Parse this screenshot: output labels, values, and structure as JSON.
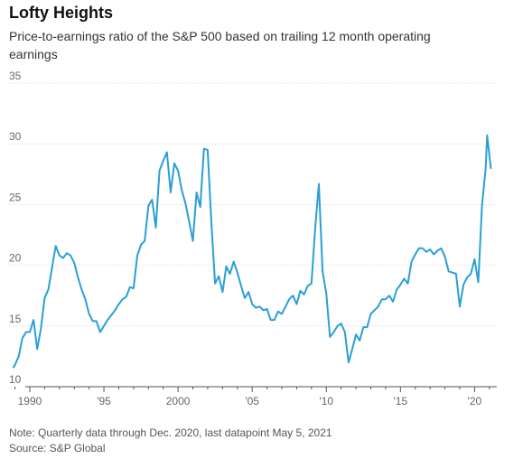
{
  "chart_data": {
    "type": "line",
    "title": "Lofty Heights",
    "subtitle": "Price-to-earnings ratio of the S&P 500 based on trailing 12 month operating earnings",
    "ylim": [
      10,
      35
    ],
    "xlim": [
      1988.6,
      2021.5
    ],
    "y_ticks": [
      10,
      15,
      20,
      25,
      30,
      35
    ],
    "x_ticks": [
      {
        "value": 1990,
        "label": "1990"
      },
      {
        "value": 1995,
        "label": "'95"
      },
      {
        "value": 2000,
        "label": "2000"
      },
      {
        "value": 2005,
        "label": "'05"
      },
      {
        "value": 2010,
        "label": "'10"
      },
      {
        "value": 2015,
        "label": "'15"
      },
      {
        "value": 2020,
        "label": "'20"
      }
    ],
    "grid": true,
    "line_color": "#2a9fd6",
    "series": [
      {
        "name": "",
        "x": [
          1988.9,
          1989.0,
          1989.25,
          1989.5,
          1989.75,
          1990.0,
          1990.25,
          1990.5,
          1990.75,
          1991.0,
          1991.25,
          1991.5,
          1991.75,
          1992.0,
          1992.25,
          1992.5,
          1992.75,
          1993.0,
          1993.25,
          1993.5,
          1993.75,
          1994.0,
          1994.25,
          1994.5,
          1994.75,
          1995.0,
          1995.25,
          1995.5,
          1995.75,
          1996.0,
          1996.25,
          1996.5,
          1996.75,
          1997.0,
          1997.25,
          1997.5,
          1997.75,
          1998.0,
          1998.25,
          1998.5,
          1998.75,
          1999.0,
          1999.25,
          1999.5,
          1999.75,
          2000.0,
          2000.25,
          2000.5,
          2000.75,
          2001.0,
          2001.25,
          2001.5,
          2001.75,
          2002.0,
          2002.25,
          2002.5,
          2002.75,
          2003.0,
          2003.25,
          2003.5,
          2003.75,
          2004.0,
          2004.25,
          2004.5,
          2004.75,
          2005.0,
          2005.25,
          2005.5,
          2005.75,
          2006.0,
          2006.25,
          2006.5,
          2006.75,
          2007.0,
          2007.25,
          2007.5,
          2007.75,
          2008.0,
          2008.25,
          2008.5,
          2008.75,
          2009.0,
          2009.25,
          2009.5,
          2009.75,
          2010.0,
          2010.25,
          2010.5,
          2010.75,
          2011.0,
          2011.25,
          2011.5,
          2011.75,
          2012.0,
          2012.25,
          2012.5,
          2012.75,
          2013.0,
          2013.25,
          2013.5,
          2013.75,
          2014.0,
          2014.25,
          2014.5,
          2014.75,
          2015.0,
          2015.25,
          2015.5,
          2015.75,
          2016.0,
          2016.25,
          2016.5,
          2016.75,
          2017.0,
          2017.25,
          2017.5,
          2017.75,
          2018.0,
          2018.25,
          2018.5,
          2018.75,
          2019.0,
          2019.25,
          2019.5,
          2019.75,
          2020.0,
          2020.25,
          2020.5,
          2020.75,
          2020.85,
          2021.1
        ],
        "values": [
          11.6,
          11.8,
          12.5,
          14.0,
          14.5,
          14.5,
          15.5,
          13.1,
          14.8,
          17.3,
          18.0,
          19.8,
          21.6,
          20.8,
          20.6,
          21.0,
          20.8,
          20.2,
          19.0,
          18.0,
          17.2,
          16.0,
          15.4,
          15.4,
          14.5,
          15.0,
          15.5,
          15.9,
          16.3,
          16.8,
          17.2,
          17.4,
          18.2,
          18.1,
          20.8,
          21.7,
          22.0,
          24.9,
          25.4,
          23.1,
          27.8,
          28.6,
          29.3,
          26.0,
          28.4,
          27.8,
          26.2,
          25.1,
          23.6,
          22.0,
          26.0,
          24.8,
          29.6,
          29.5,
          23.5,
          18.5,
          19.1,
          17.8,
          19.9,
          19.3,
          20.3,
          19.4,
          18.3,
          17.3,
          17.8,
          16.8,
          16.5,
          16.6,
          16.3,
          16.4,
          15.5,
          15.5,
          16.2,
          16.0,
          16.6,
          17.2,
          17.5,
          16.8,
          17.9,
          17.6,
          18.3,
          18.5,
          23.0,
          26.7,
          19.5,
          17.7,
          14.1,
          14.5,
          15.0,
          15.2,
          14.5,
          12.0,
          13.1,
          14.3,
          13.8,
          14.9,
          14.9,
          16.0,
          16.3,
          16.6,
          17.2,
          17.2,
          17.5,
          17.0,
          18.0,
          18.4,
          18.9,
          18.5,
          20.3,
          20.9,
          21.4,
          21.4,
          21.1,
          21.3,
          20.9,
          21.2,
          21.4,
          20.7,
          19.5,
          19.4,
          19.3,
          16.6,
          18.4,
          19.0,
          19.3,
          20.5,
          18.6,
          24.9,
          28.0,
          30.7,
          28.0
        ]
      }
    ],
    "note": "Note: Quarterly data through Dec. 2020, last datapoint May 5, 2021",
    "source": "Source: S&P Global"
  }
}
